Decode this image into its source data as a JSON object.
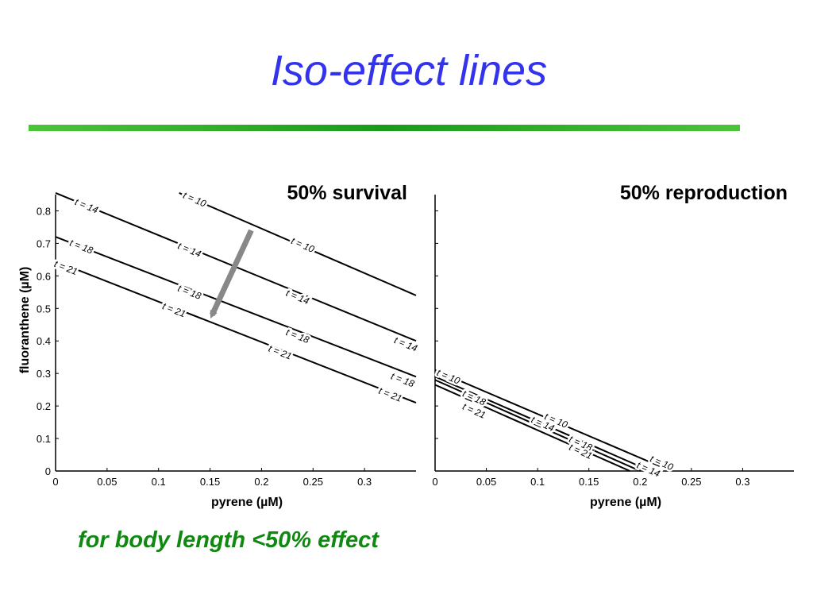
{
  "slide": {
    "title": "Iso-effect lines",
    "footnote": "for body length <50% effect",
    "accent_title_color": "#3333ee",
    "rule_color": "#2fb52f",
    "footnote_color": "#118811"
  },
  "chart_data": [
    {
      "type": "line",
      "title": "50% survival",
      "xlabel": "pyrene (µM)",
      "ylabel": "fluoranthene (µM)",
      "xlim": [
        0,
        0.35
      ],
      "ylim": [
        0,
        0.85
      ],
      "xticks": [
        0,
        0.05,
        0.1,
        0.15,
        0.2,
        0.25,
        0.3
      ],
      "xtick_labels": [
        "0",
        "0.05",
        "0.1",
        "0.15",
        "0.2",
        "0.25",
        "0.3"
      ],
      "yticks": [
        0,
        0.1,
        0.2,
        0.3,
        0.4,
        0.5,
        0.6,
        0.7,
        0.8
      ],
      "ytick_labels": [
        "0",
        "0.1",
        "0.2",
        "0.3",
        "0.4",
        "0.5",
        "0.6",
        "0.7",
        "0.8"
      ],
      "grid": false,
      "series": [
        {
          "name": "t = 10",
          "x": [
            0.12,
            0.35
          ],
          "y": [
            0.855,
            0.54
          ]
        },
        {
          "name": "t = 14",
          "x": [
            0,
            0.35
          ],
          "y": [
            0.855,
            0.4
          ]
        },
        {
          "name": "t = 18",
          "x": [
            0,
            0.35
          ],
          "y": [
            0.72,
            0.29
          ]
        },
        {
          "name": "t = 21",
          "x": [
            0,
            0.35
          ],
          "y": [
            0.645,
            0.21
          ]
        }
      ],
      "contour_labels": [
        {
          "text": "t = 10",
          "x": 0.135,
          "y": 0.835
        },
        {
          "text": "t = 10",
          "x": 0.24,
          "y": 0.695
        },
        {
          "text": "t = 14",
          "x": 0.03,
          "y": 0.815
        },
        {
          "text": "t = 14",
          "x": 0.13,
          "y": 0.68
        },
        {
          "text": "t = 14",
          "x": 0.235,
          "y": 0.535
        },
        {
          "text": "t = 14",
          "x": 0.34,
          "y": 0.39
        },
        {
          "text": "t = 18",
          "x": 0.025,
          "y": 0.69
        },
        {
          "text": "t = 18",
          "x": 0.13,
          "y": 0.55
        },
        {
          "text": "t = 18",
          "x": 0.235,
          "y": 0.415
        },
        {
          "text": "t = 18",
          "x": 0.337,
          "y": 0.28
        },
        {
          "text": "t = 21",
          "x": 0.01,
          "y": 0.625
        },
        {
          "text": "t = 21",
          "x": 0.115,
          "y": 0.495
        },
        {
          "text": "t = 21",
          "x": 0.218,
          "y": 0.365
        },
        {
          "text": "t = 21",
          "x": 0.325,
          "y": 0.235
        }
      ],
      "annotations": [
        {
          "type": "arrow",
          "color": "#888888",
          "from": [
            0.19,
            0.74
          ],
          "to": [
            0.152,
            0.48
          ]
        }
      ]
    },
    {
      "type": "line",
      "title": "50% reproduction",
      "xlabel": "pyrene (µM)",
      "ylabel": "",
      "xlim": [
        0,
        0.35
      ],
      "ylim": [
        0,
        0.85
      ],
      "xticks": [
        0,
        0.05,
        0.1,
        0.15,
        0.2,
        0.25,
        0.3
      ],
      "xtick_labels": [
        "0",
        "0.05",
        "0.1",
        "0.15",
        "0.2",
        "0.25",
        "0.3"
      ],
      "yticks": [
        0,
        0.1,
        0.2,
        0.3,
        0.4,
        0.5,
        0.6,
        0.7,
        0.8
      ],
      "ytick_labels": [],
      "grid": false,
      "series": [
        {
          "name": "t = 10",
          "x": [
            0,
            0.23
          ],
          "y": [
            0.31,
            0
          ]
        },
        {
          "name": "t = 14",
          "x": [
            0,
            0.21
          ],
          "y": [
            0.29,
            0
          ]
        },
        {
          "name": "t = 18",
          "x": [
            0,
            0.2
          ],
          "y": [
            0.28,
            0
          ]
        },
        {
          "name": "t = 21",
          "x": [
            0,
            0.19
          ],
          "y": [
            0.265,
            0
          ]
        }
      ],
      "contour_labels": [
        {
          "text": "t = 10",
          "x": 0.013,
          "y": 0.29
        },
        {
          "text": "t = 10",
          "x": 0.118,
          "y": 0.155
        },
        {
          "text": "t = 10",
          "x": 0.221,
          "y": 0.025
        },
        {
          "text": "t = 14",
          "x": 0.105,
          "y": 0.145
        },
        {
          "text": "t = 14",
          "x": 0.208,
          "y": 0.005
        },
        {
          "text": "t = 18",
          "x": 0.038,
          "y": 0.225
        },
        {
          "text": "t = 18",
          "x": 0.142,
          "y": 0.085
        },
        {
          "text": "t = 21",
          "x": 0.038,
          "y": 0.185
        },
        {
          "text": "t = 21",
          "x": 0.142,
          "y": 0.06
        }
      ]
    }
  ]
}
